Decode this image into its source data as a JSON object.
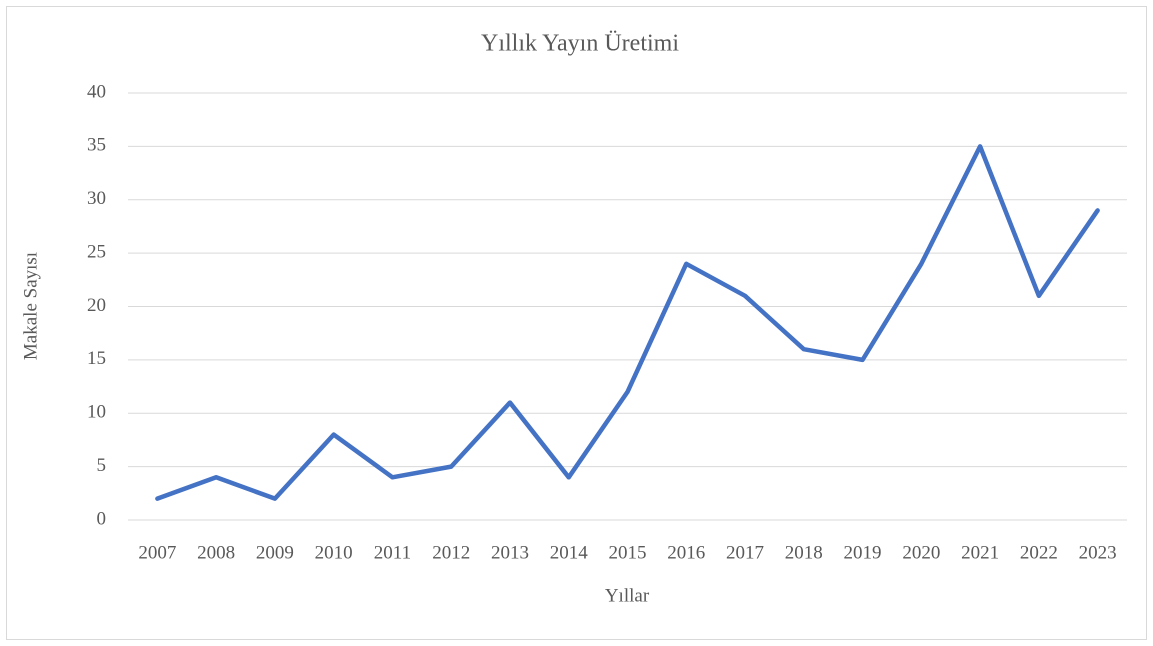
{
  "chart_data": {
    "type": "line",
    "title": "Yıllık Yayın Üretimi",
    "x_label": "Yıllar",
    "y_label": "Makale Sayısı",
    "categories": [
      "2007",
      "2008",
      "2009",
      "2010",
      "2011",
      "2012",
      "2013",
      "2014",
      "2015",
      "2016",
      "2017",
      "2018",
      "2019",
      "2020",
      "2021",
      "2022",
      "2023"
    ],
    "series": [
      {
        "name": "Makale Sayısı",
        "color": "#4472c4",
        "values": [
          2,
          4,
          2,
          8,
          4,
          5,
          11,
          4,
          12,
          24,
          21,
          16,
          15,
          24,
          35,
          21,
          29
        ]
      }
    ],
    "ylim": [
      0,
      40
    ],
    "yticks": [
      0,
      5,
      10,
      15,
      20,
      25,
      30,
      35,
      40
    ],
    "grid": true,
    "legend": false
  }
}
